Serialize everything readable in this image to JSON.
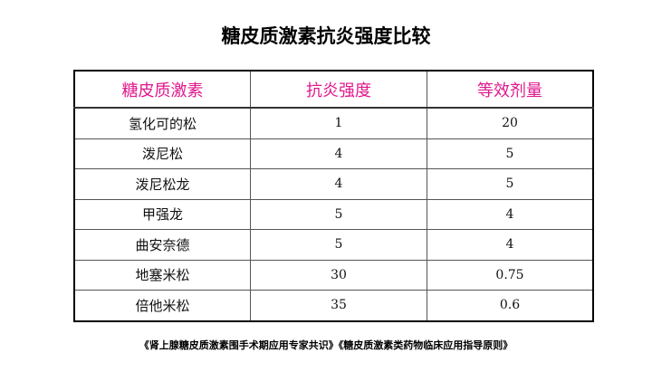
{
  "title": "糖皮质激素抗炎强度比较",
  "table": {
    "headers": [
      "糖皮质激素",
      "抗炎强度",
      "等效剂量"
    ],
    "rows": [
      [
        "氢化可的松",
        "1",
        "20"
      ],
      [
        "泼尼松",
        "4",
        "5"
      ],
      [
        "泼尼松龙",
        "4",
        "5"
      ],
      [
        "甲强龙",
        "5",
        "4"
      ],
      [
        "曲安奈德",
        "5",
        "4"
      ],
      [
        "地塞米松",
        "30",
        "0.75"
      ],
      [
        "倍他米松",
        "35",
        "0.6"
      ]
    ]
  },
  "source": "《肾上腺糖皮质激素围手术期应用专家共识》《糖皮质激素类药物临床应用指导原则》",
  "colors": {
    "header_text": "#e0188c"
  }
}
